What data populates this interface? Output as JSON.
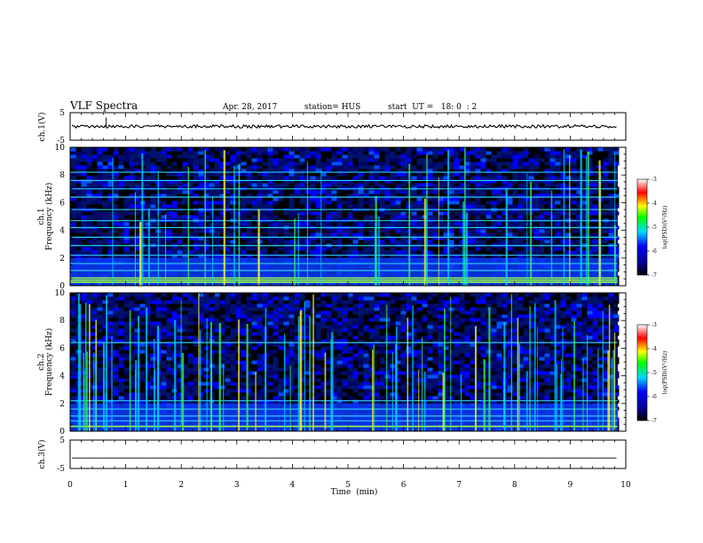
{
  "header": {
    "title": "VLF Spectra",
    "date": "Apr. 28, 2017",
    "station": "station= HUS",
    "start": "start  UT =   18: 0  : 2"
  },
  "chart_data": [
    {
      "type": "line",
      "panel": "ch1-waveform",
      "ylabel": "ch.1(V)",
      "ylim": [
        -5,
        5
      ],
      "yticks": [
        "5",
        "-5"
      ],
      "xlim": [
        0,
        10
      ],
      "baseline": 0,
      "data_extent_min": 9.85,
      "spike_at_min": 0.65,
      "color": "#000000"
    },
    {
      "type": "heatmap",
      "panel": "ch1-spectrogram",
      "ylabel_line1": "ch.1",
      "ylabel_line2": "Frequency  (kHz)",
      "ylim": [
        0,
        10
      ],
      "yticks": [
        "0",
        "2",
        "4",
        "6",
        "8",
        "10"
      ],
      "xlim": [
        0,
        10
      ],
      "data_extent_min": 9.85,
      "horizontal_lines_khz": [
        0.25,
        0.4,
        0.55,
        1.1,
        1.6,
        2.2,
        2.9,
        3.5,
        4.2,
        4.7,
        5.5,
        6.4,
        7.0,
        7.6,
        8.2
      ],
      "colorbar": {
        "label": "log(PSD)(V²/Hz)",
        "range": [
          -7,
          -3
        ],
        "ticks": [
          "-3",
          "-4",
          "-5",
          "-6",
          "-7"
        ]
      }
    },
    {
      "type": "heatmap",
      "panel": "ch2-spectrogram",
      "ylabel_line1": "ch.2",
      "ylabel_line2": "Frequency  (kHz)",
      "ylim": [
        0,
        10
      ],
      "yticks": [
        "0",
        "2",
        "4",
        "6",
        "8",
        "10"
      ],
      "xlim": [
        0,
        10
      ],
      "data_extent_min": 9.85,
      "horizontal_lines_khz": [
        0.35,
        0.75,
        1.1,
        1.6,
        2.2,
        6.4
      ],
      "colorbar": {
        "label": "log(PSD)(V²/Hz)",
        "range": [
          -7,
          -3
        ],
        "ticks": [
          "-3",
          "-4",
          "-5",
          "-6",
          "-7"
        ]
      }
    },
    {
      "type": "line",
      "panel": "ch3-waveform",
      "ylabel": "ch.3(V)",
      "ylim": [
        -5,
        5
      ],
      "yticks": [
        "5",
        "-5"
      ],
      "xlim": [
        0,
        10
      ],
      "baseline": -1.3,
      "data_extent_min": 9.85,
      "color": "#000000"
    }
  ],
  "x_axis": {
    "label": "Time  (min)",
    "ticks": [
      "0",
      "1",
      "2",
      "3",
      "4",
      "5",
      "6",
      "7",
      "8",
      "9",
      "10"
    ]
  },
  "colormap": [
    "#ffffff",
    "#ff0000",
    "#ffff00",
    "#00ff00",
    "#00ffff",
    "#0000ff",
    "#000080",
    "#000000"
  ]
}
